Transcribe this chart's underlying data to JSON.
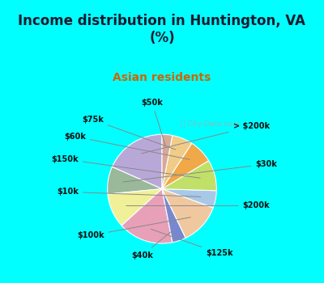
{
  "title": "Income distribution in Huntington, VA\n(%)",
  "subtitle": "Asian residents",
  "title_color": "#1a1a2e",
  "subtitle_color": "#cc6600",
  "bg_color": "#00ffff",
  "chart_bg_color": "#d8f0e8",
  "labels": [
    "> $200k",
    "$30k",
    "$200k",
    "$125k",
    "$40k",
    "$100k",
    "$10k",
    "$150k",
    "$60k",
    "$75k",
    "$50k"
  ],
  "values": [
    18,
    8,
    10,
    16,
    4,
    12,
    5,
    9,
    7,
    6,
    3
  ],
  "colors": [
    "#b8a8d8",
    "#9ab89a",
    "#f0f098",
    "#e8a0b8",
    "#7888d0",
    "#f0c8a0",
    "#a8c8e8",
    "#c0e068",
    "#f0a848",
    "#f0cc88",
    "#d8a898"
  ],
  "startangle": 90,
  "watermark": "ⓘ City-Data.com",
  "title_fontsize": 12,
  "subtitle_fontsize": 10
}
